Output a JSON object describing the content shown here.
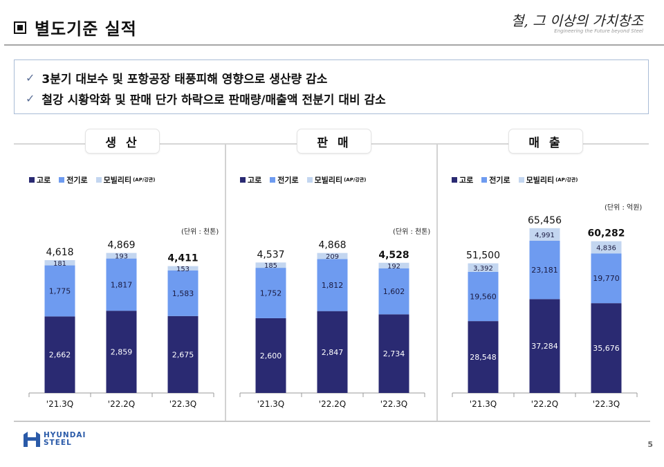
{
  "header": {
    "title": "별도기준 실적",
    "slogan_main": "철, 그 이상의 가치창조",
    "slogan_sub": "Engineering the Future beyond Steel"
  },
  "summary": {
    "bullets": [
      "3분기 대보수 및 포항공장 태풍피해 영향으로 생산량 감소",
      "철강 시황악화 및 판매 단가 하락으로 판매량/매출액 전분기 대비 감소"
    ]
  },
  "legend": {
    "items": [
      "고로",
      "전기로",
      "모빌리티"
    ],
    "note": "(AP/강관)"
  },
  "colors": {
    "blast_furnace": "#2a2a72",
    "electric_furnace": "#6e9bf0",
    "mobility": "#c3d6f0",
    "logo": "#2a5aa8"
  },
  "footer": {
    "logo_line1": "HYUNDAI",
    "logo_line2": "STEEL",
    "page_number": "5"
  },
  "chart_data": [
    {
      "type": "bar",
      "stacked": true,
      "title": "생 산",
      "unit": "(단위 : 천톤)",
      "categories": [
        "'21.3Q",
        "'22.2Q",
        "'22.3Q"
      ],
      "series": [
        {
          "name": "고로",
          "values": [
            2662,
            2859,
            2675
          ]
        },
        {
          "name": "전기로",
          "values": [
            1775,
            1817,
            1583
          ]
        },
        {
          "name": "모빌리티",
          "values": [
            181,
            193,
            153
          ]
        }
      ],
      "totals": [
        "4,618",
        "4,869",
        "4,411"
      ],
      "labels": [
        [
          "2,662",
          "2,859",
          "2,675"
        ],
        [
          "1,775",
          "1,817",
          "1,583"
        ],
        [
          "181",
          "193",
          "153"
        ]
      ],
      "ylim": [
        0,
        5100
      ]
    },
    {
      "type": "bar",
      "stacked": true,
      "title": "판 매",
      "unit": "(단위 : 천톤)",
      "categories": [
        "'21.3Q",
        "'22.2Q",
        "'22.3Q"
      ],
      "series": [
        {
          "name": "고로",
          "values": [
            2600,
            2847,
            2734
          ]
        },
        {
          "name": "전기로",
          "values": [
            1752,
            1812,
            1602
          ]
        },
        {
          "name": "모빌리티",
          "values": [
            185,
            209,
            192
          ]
        }
      ],
      "totals": [
        "4,537",
        "4,868",
        "4,528"
      ],
      "labels": [
        [
          "2,600",
          "2,847",
          "2,734"
        ],
        [
          "1,752",
          "1,812",
          "1,602"
        ],
        [
          "185",
          "209",
          "192"
        ]
      ],
      "ylim": [
        0,
        5100
      ]
    },
    {
      "type": "bar",
      "stacked": true,
      "title": "매 출",
      "unit": "(단위 : 억원)",
      "categories": [
        "'21.3Q",
        "'22.2Q",
        "'22.3Q"
      ],
      "series": [
        {
          "name": "고로",
          "values": [
            28548,
            37284,
            35676
          ]
        },
        {
          "name": "전기로",
          "values": [
            19560,
            23181,
            19770
          ]
        },
        {
          "name": "모빌리티",
          "values": [
            3392,
            4991,
            4836
          ]
        }
      ],
      "totals": [
        "51,500",
        "65,456",
        "60,282"
      ],
      "labels": [
        [
          "28,548",
          "37,284",
          "35,676"
        ],
        [
          "19,560",
          "23,181",
          "19,770"
        ],
        [
          "3,392",
          "4,991",
          "4,836"
        ]
      ],
      "ylim": [
        0,
        67000
      ]
    }
  ]
}
